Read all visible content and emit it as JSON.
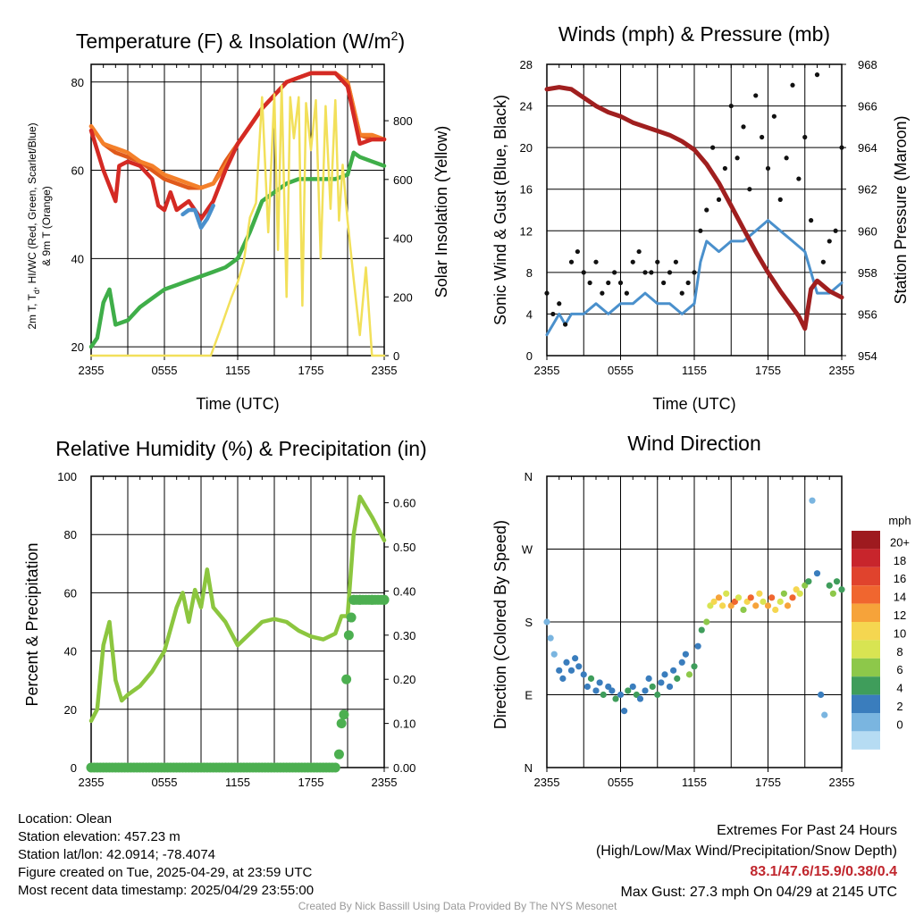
{
  "chart_data": [
    {
      "type": "line",
      "title_main": "Temperature (F) & Insolation (W/m",
      "title_sup": "2",
      "title_end": ")",
      "xlabel": "Time (UTC)",
      "ylabel_line1": "2m T, T",
      "ylabel_sub": "d",
      "ylabel_line1_end": ", HI/WC (Red, Green, Scarlet/Blue)",
      "ylabel_line2": "& 9m T (Orange)",
      "y2label": "Solar Insolation (Yellow)",
      "xticks": [
        "2355",
        "0555",
        "1155",
        "1755",
        "2355"
      ],
      "ylim": [
        18,
        84
      ],
      "yticks": [
        20,
        40,
        60,
        80
      ],
      "y2lim": [
        0,
        992
      ],
      "y2ticks": [
        0,
        200,
        400,
        600,
        800
      ],
      "series": [
        {
          "color": "#e05a1b",
          "x": [
            0,
            1,
            2,
            3,
            4,
            5,
            6,
            7,
            8,
            9,
            10,
            11,
            12,
            13,
            14,
            15,
            16,
            17,
            18,
            19,
            20,
            21,
            22,
            23,
            24
          ],
          "values": [
            70,
            66,
            64,
            63,
            62,
            60,
            58,
            57,
            56,
            56,
            57,
            62,
            66,
            70,
            74,
            77,
            80,
            81,
            82,
            82,
            82,
            80,
            68,
            67,
            67
          ]
        },
        {
          "color": "#f4802a",
          "x": [
            0,
            1,
            2,
            3,
            4,
            5,
            6,
            7,
            8,
            9,
            10,
            11,
            12,
            13,
            14,
            15,
            16,
            17,
            18,
            19,
            20,
            21,
            22,
            23,
            24
          ],
          "values": [
            70,
            66,
            65,
            64,
            62,
            61,
            59,
            58,
            57,
            56,
            57,
            61,
            66,
            70,
            74,
            77,
            80,
            81,
            82,
            82,
            82,
            80,
            68,
            68,
            67
          ]
        },
        {
          "color": "#d42a24",
          "x": [
            0,
            1,
            2,
            2.3,
            3,
            4,
            5,
            5.5,
            6,
            6.5,
            7,
            8,
            9,
            10,
            11,
            12,
            13,
            14,
            15,
            16,
            17,
            18,
            19,
            20,
            21,
            22,
            23,
            24
          ],
          "values": [
            69,
            60,
            53,
            61,
            62,
            61,
            58,
            52,
            51,
            55,
            51,
            53,
            49,
            53,
            60,
            66,
            70,
            74,
            77,
            80,
            81,
            82,
            82,
            82,
            79,
            66,
            67,
            67
          ]
        },
        {
          "color": "#4a90cc",
          "x": [
            7.5,
            8,
            8.5,
            9,
            9.5,
            10
          ],
          "values": [
            50,
            51,
            51,
            47,
            49,
            52
          ]
        },
        {
          "color": "#3fae49",
          "x": [
            0,
            0.5,
            1,
            1.5,
            2,
            3,
            4,
            5,
            6,
            7,
            8,
            9,
            10,
            11,
            12,
            13,
            14,
            15,
            16,
            17,
            18,
            19,
            20,
            21,
            21.5,
            22,
            23,
            24
          ],
          "values": [
            20,
            22,
            30,
            33,
            25,
            26,
            29,
            31,
            33,
            34,
            35,
            36,
            37,
            38,
            40,
            46,
            53,
            55,
            57,
            58,
            58,
            58,
            58,
            59,
            64,
            63,
            62,
            61
          ]
        },
        {
          "color": "#f2e05a",
          "axis": "y2",
          "x": [
            0,
            4,
            8,
            9.8,
            10.5,
            11,
            11.5,
            12,
            12.5,
            13,
            13.5,
            14,
            14.5,
            15,
            15.3,
            15.6,
            16,
            16.3,
            16.6,
            17,
            17.3,
            17.6,
            18,
            18.4,
            18.8,
            19.2,
            19.6,
            20,
            20.3,
            20.6,
            21,
            21.5,
            22,
            22.5,
            23,
            24
          ],
          "values": [
            0,
            0,
            0,
            0,
            80,
            140,
            200,
            250,
            320,
            470,
            520,
            880,
            420,
            890,
            360,
            920,
            200,
            880,
            740,
            880,
            170,
            860,
            700,
            870,
            330,
            850,
            500,
            870,
            460,
            650,
            460,
            260,
            70,
            300,
            0,
            0
          ]
        }
      ]
    },
    {
      "type": "line+scatter",
      "title": "Winds (mph) & Pressure (mb)",
      "xlabel": "Time (UTC)",
      "ylabel": "Sonic Wind & Gust (Blue, Black)",
      "y2label": "Station Pressure (Maroon)",
      "xticks": [
        "2355",
        "0555",
        "1155",
        "1755",
        "2355"
      ],
      "ylim": [
        0,
        28
      ],
      "yticks": [
        0,
        4,
        8,
        12,
        16,
        20,
        24,
        28
      ],
      "y2lim": [
        954,
        968
      ],
      "y2ticks": [
        954,
        956,
        958,
        960,
        962,
        964,
        966,
        968
      ],
      "wind": {
        "color": "#4a90cc",
        "x": [
          0,
          0.5,
          1,
          1.5,
          2,
          3,
          4,
          5,
          6,
          7,
          8,
          9,
          10,
          11,
          12,
          12.5,
          13,
          14,
          15,
          16,
          17,
          18,
          19,
          20,
          21,
          22,
          23,
          24
        ],
        "values": [
          2,
          3,
          4,
          3,
          4,
          4,
          5,
          4,
          5,
          5,
          6,
          5,
          5,
          4,
          5,
          9,
          11,
          10,
          11,
          11,
          12,
          13,
          12,
          11,
          10,
          6,
          6,
          7
        ]
      },
      "gust": {
        "color": "#111111",
        "x": [
          0,
          0.5,
          1,
          1.5,
          2,
          2.5,
          3,
          3.5,
          4,
          4.5,
          5,
          5.5,
          6,
          6.5,
          7,
          7.5,
          8,
          8.5,
          9,
          9.5,
          10,
          10.5,
          11,
          11.5,
          12,
          12.5,
          13,
          13.5,
          14,
          14.5,
          15,
          15.5,
          16,
          16.5,
          17,
          17.5,
          18,
          18.5,
          19,
          19.5,
          20,
          20.5,
          21,
          21.5,
          22,
          22.5,
          23,
          23.5,
          24
        ],
        "values": [
          6,
          4,
          5,
          3,
          9,
          10,
          8,
          7,
          9,
          6,
          7,
          8,
          7,
          6,
          9,
          10,
          8,
          8,
          9,
          7,
          8,
          9,
          6,
          7,
          8,
          12,
          14,
          20,
          15,
          18,
          24,
          19,
          22,
          16,
          25,
          21,
          18,
          23,
          15,
          19,
          26,
          17,
          21,
          13,
          27,
          9,
          11,
          12,
          20
        ]
      },
      "pressure": {
        "color": "#a01f1f",
        "x": [
          0,
          1,
          2,
          3,
          4,
          5,
          6,
          7,
          8,
          9,
          10,
          11,
          12,
          13,
          14,
          15,
          16,
          17,
          18,
          19,
          20,
          20.5,
          21,
          21.5,
          22,
          23,
          24
        ],
        "values": [
          966.8,
          966.9,
          966.8,
          966.4,
          966.0,
          965.7,
          965.5,
          965.2,
          965.0,
          964.8,
          964.6,
          964.3,
          963.9,
          963.2,
          962.3,
          961.2,
          960.1,
          959.0,
          958.0,
          957.1,
          956.3,
          955.9,
          955.3,
          957.2,
          957.6,
          957.1,
          956.8
        ]
      }
    },
    {
      "type": "line+scatter",
      "title": "Relative Humidity (%) & Precipitation (in)",
      "ylabel": "Percent & Precipitation",
      "xticks": [
        "2355",
        "0555",
        "1155",
        "1755",
        "2355"
      ],
      "ylim": [
        0,
        100
      ],
      "yticks": [
        0,
        20,
        40,
        60,
        80,
        100
      ],
      "y2lim": [
        0,
        0.66
      ],
      "y2ticks": [
        "0.00",
        "0.10",
        "0.20",
        "0.30",
        "0.40",
        "0.50",
        "0.60"
      ],
      "rh": {
        "color": "#8cc63f",
        "x": [
          0,
          0.5,
          1,
          1.5,
          2,
          2.5,
          3,
          4,
          5,
          6,
          7,
          7.5,
          8,
          8.5,
          9,
          9.5,
          10,
          11,
          12,
          13,
          14,
          15,
          16,
          17,
          18,
          19,
          20,
          20.5,
          21,
          21.5,
          22,
          23,
          24
        ],
        "values": [
          16,
          20,
          42,
          50,
          30,
          23,
          25,
          28,
          33,
          40,
          55,
          60,
          50,
          61,
          55,
          68,
          55,
          50,
          42,
          46,
          50,
          51,
          50,
          47,
          45,
          44,
          46,
          52,
          52,
          80,
          93,
          86,
          78
        ]
      },
      "precip": {
        "color": "#4caf50",
        "x": [
          0,
          2,
          4,
          6,
          8,
          10,
          12,
          14,
          16,
          18,
          20,
          20.3,
          20.5,
          20.7,
          20.9,
          21.1,
          21.3,
          21.5,
          22,
          23,
          24
        ],
        "values": [
          0,
          0,
          0,
          0,
          0,
          0,
          0,
          0,
          0,
          0,
          0,
          0.03,
          0.1,
          0.12,
          0.2,
          0.3,
          0.34,
          0.38,
          0.38,
          0.38,
          0.38
        ]
      }
    },
    {
      "type": "scatter",
      "title": "Wind Direction",
      "ylabel": "Direction (Colored By Speed)",
      "xticks": [
        "2355",
        "0555",
        "1155",
        "1755",
        "2355"
      ],
      "yticks": [
        "N",
        "E",
        "S",
        "W",
        "N"
      ],
      "colorbar_title": "mph",
      "colorbar_labels": [
        "20+",
        "18",
        "16",
        "14",
        "12",
        "10",
        "8",
        "6",
        "4",
        "2",
        "0"
      ],
      "colorbar_colors": [
        "#9e1a1f",
        "#c8252c",
        "#e0432d",
        "#f0662f",
        "#f6a33a",
        "#f5d650",
        "#d8e452",
        "#8dc84a",
        "#3f9d5b",
        "#3a7dbd",
        "#7ab5e0",
        "#b6dcf3"
      ],
      "points": {
        "x": [
          0,
          0.3,
          0.6,
          1,
          1.3,
          1.6,
          2,
          2.3,
          2.6,
          3,
          3.3,
          3.6,
          4,
          4.3,
          4.6,
          5,
          5.3,
          5.6,
          6,
          6.3,
          6.6,
          7,
          7.3,
          7.6,
          8,
          8.3,
          8.6,
          9,
          9.3,
          9.6,
          10,
          10.3,
          10.6,
          11,
          11.3,
          11.6,
          12,
          12.3,
          12.6,
          13,
          13.3,
          13.6,
          14,
          14.3,
          14.6,
          15,
          15.3,
          15.6,
          16,
          16.3,
          16.6,
          17,
          17.3,
          17.6,
          18,
          18.3,
          18.6,
          19,
          19.3,
          19.6,
          20,
          20.3,
          20.6,
          21,
          21.3,
          21.6,
          22,
          22.3,
          22.6,
          23,
          23.3,
          23.6,
          24
        ],
        "dir": [
          180,
          160,
          140,
          120,
          110,
          130,
          120,
          135,
          125,
          115,
          100,
          110,
          95,
          105,
          90,
          100,
          95,
          85,
          90,
          70,
          95,
          100,
          90,
          85,
          95,
          110,
          100,
          90,
          105,
          115,
          100,
          120,
          110,
          130,
          140,
          115,
          125,
          150,
          170,
          180,
          200,
          205,
          210,
          200,
          215,
          200,
          205,
          210,
          195,
          205,
          210,
          200,
          215,
          205,
          200,
          210,
          195,
          205,
          215,
          200,
          210,
          220,
          215,
          225,
          230,
          330,
          240,
          90,
          65,
          225,
          215,
          230,
          220
        ],
        "speed": [
          2,
          1,
          2,
          4,
          3,
          4,
          4,
          3,
          4,
          4,
          4,
          5,
          4,
          4,
          5,
          4,
          4,
          6,
          4,
          4,
          5,
          4,
          6,
          4,
          4,
          4,
          5,
          6,
          4,
          4,
          4,
          4,
          5,
          4,
          4,
          7,
          6,
          4,
          5,
          8,
          10,
          12,
          14,
          11,
          9,
          13,
          15,
          10,
          8,
          12,
          16,
          14,
          11,
          9,
          13,
          15,
          12,
          10,
          8,
          14,
          16,
          12,
          9,
          7,
          5,
          2,
          4,
          3,
          2,
          6,
          7,
          5,
          6
        ]
      }
    }
  ],
  "info": {
    "location": "Location: Olean",
    "elevation": "Station elevation: 457.23 m",
    "latlon": "Station lat/lon: 42.0914; -78.4074",
    "created": "Figure created on Tue, 2025-04-29, at 23:59 UTC",
    "recent": "Most recent data timestamp: 2025/04/29 23:55:00"
  },
  "extremes": {
    "title": "Extremes For Past 24 Hours",
    "subtitle": "(High/Low/Max Wind/Precipitation/Snow Depth)",
    "values": "83.1/47.6/15.9/0.38/0.4",
    "max_gust": "Max Gust: 27.3 mph On 04/29 at 2145 UTC"
  },
  "credit": "Created By Nick Bassill Using Data Provided By The NYS Mesonet"
}
